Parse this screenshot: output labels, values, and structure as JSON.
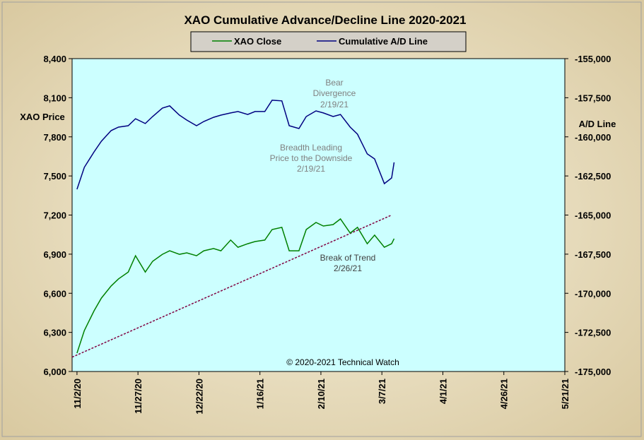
{
  "chart_data": {
    "type": "line",
    "title": "XAO Cumulative Advance/Decline Line 2020-2021",
    "y_label": "XAO Price",
    "y2_label": "A/D Line",
    "footer": "© 2020-2021  Technical Watch",
    "x": [
      "11/2/20",
      "11/5/20",
      "11/9/20",
      "11/12/20",
      "11/16/20",
      "11/19/20",
      "11/23/20",
      "11/26/20",
      "11/30/20",
      "12/3/20",
      "12/7/20",
      "12/10/20",
      "12/14/20",
      "12/17/20",
      "12/21/20",
      "12/24/20",
      "12/28/20",
      "12/31/20",
      "1/4/21",
      "1/7/21",
      "1/11/21",
      "1/14/21",
      "1/18/21",
      "1/21/21",
      "1/25/21",
      "1/28/21",
      "2/1/21",
      "2/4/21",
      "2/8/21",
      "2/11/21",
      "2/15/21",
      "2/18/21",
      "2/22/21",
      "2/25/21",
      "3/1/21",
      "3/4/21",
      "3/8/21",
      "3/11/21",
      "3/12/21"
    ],
    "series": [
      {
        "name": "XAO Close",
        "color": "#008000",
        "values": [
          6141,
          6314,
          6466,
          6563,
          6656,
          6710,
          6763,
          6888,
          6763,
          6845,
          6899,
          6926,
          6899,
          6910,
          6888,
          6926,
          6943,
          6926,
          7008,
          6953,
          6980,
          6997,
          7008,
          7089,
          7106,
          6926,
          6926,
          7089,
          7143,
          7116,
          7127,
          7170,
          7062,
          7106,
          6980,
          7046,
          6953,
          6980,
          7019
        ]
      },
      {
        "name": "Cumulative A/D Line",
        "color": "#000080",
        "axis": "y2",
        "values": [
          -163350,
          -161950,
          -160960,
          -160280,
          -159600,
          -159380,
          -159290,
          -158840,
          -159150,
          -158700,
          -158160,
          -158020,
          -158610,
          -158930,
          -159290,
          -159020,
          -158750,
          -158610,
          -158470,
          -158380,
          -158570,
          -158380,
          -158380,
          -157660,
          -157700,
          -159290,
          -159470,
          -158700,
          -158340,
          -158470,
          -158700,
          -158570,
          -159380,
          -159830,
          -161090,
          -161410,
          -162990,
          -162630,
          -161630
        ]
      }
    ],
    "trend_line": {
      "x": [
        "10/31/20",
        "3/11/21"
      ],
      "values": [
        6110,
        7200
      ],
      "color": "#800040"
    },
    "annotations": [
      {
        "lines": [
          "Bear",
          "Divergence",
          "2/19/21"
        ]
      },
      {
        "lines": [
          "Breadth Leading",
          "Price to the Downside",
          "2/19/21"
        ]
      },
      {
        "lines": [
          "Break of Trend",
          "2/26/21"
        ]
      }
    ],
    "xlim": [
      "10/31/20",
      "5/21/21"
    ],
    "xticks": [
      "11/2/20",
      "11/27/20",
      "12/22/20",
      "1/16/21",
      "2/10/21",
      "3/7/21",
      "4/1/21",
      "4/26/21",
      "5/21/21"
    ],
    "ylim": [
      6000,
      8400
    ],
    "yticks": [
      {
        "value": 6000,
        "label": "6,000"
      },
      {
        "value": 6300,
        "label": "6,300"
      },
      {
        "value": 6600,
        "label": "6,600"
      },
      {
        "value": 6900,
        "label": "6,900"
      },
      {
        "value": 7200,
        "label": "7,200"
      },
      {
        "value": 7500,
        "label": "7,500"
      },
      {
        "value": 7800,
        "label": "7,800"
      },
      {
        "value": 8100,
        "label": "8,100"
      },
      {
        "value": 8400,
        "label": "8,400"
      }
    ],
    "y2lim": [
      -175000,
      -155000
    ],
    "y2ticks": [
      {
        "value": -175000,
        "label": "-175,000"
      },
      {
        "value": -172500,
        "label": "-172,500"
      },
      {
        "value": -170000,
        "label": "-170,000"
      },
      {
        "value": -167500,
        "label": "-167,500"
      },
      {
        "value": -165000,
        "label": "-165,000"
      },
      {
        "value": -162500,
        "label": "-162,500"
      },
      {
        "value": -160000,
        "label": "-160,000"
      },
      {
        "value": -157500,
        "label": "-157,500"
      },
      {
        "value": -155000,
        "label": "-155,000"
      }
    ],
    "grid": false
  }
}
